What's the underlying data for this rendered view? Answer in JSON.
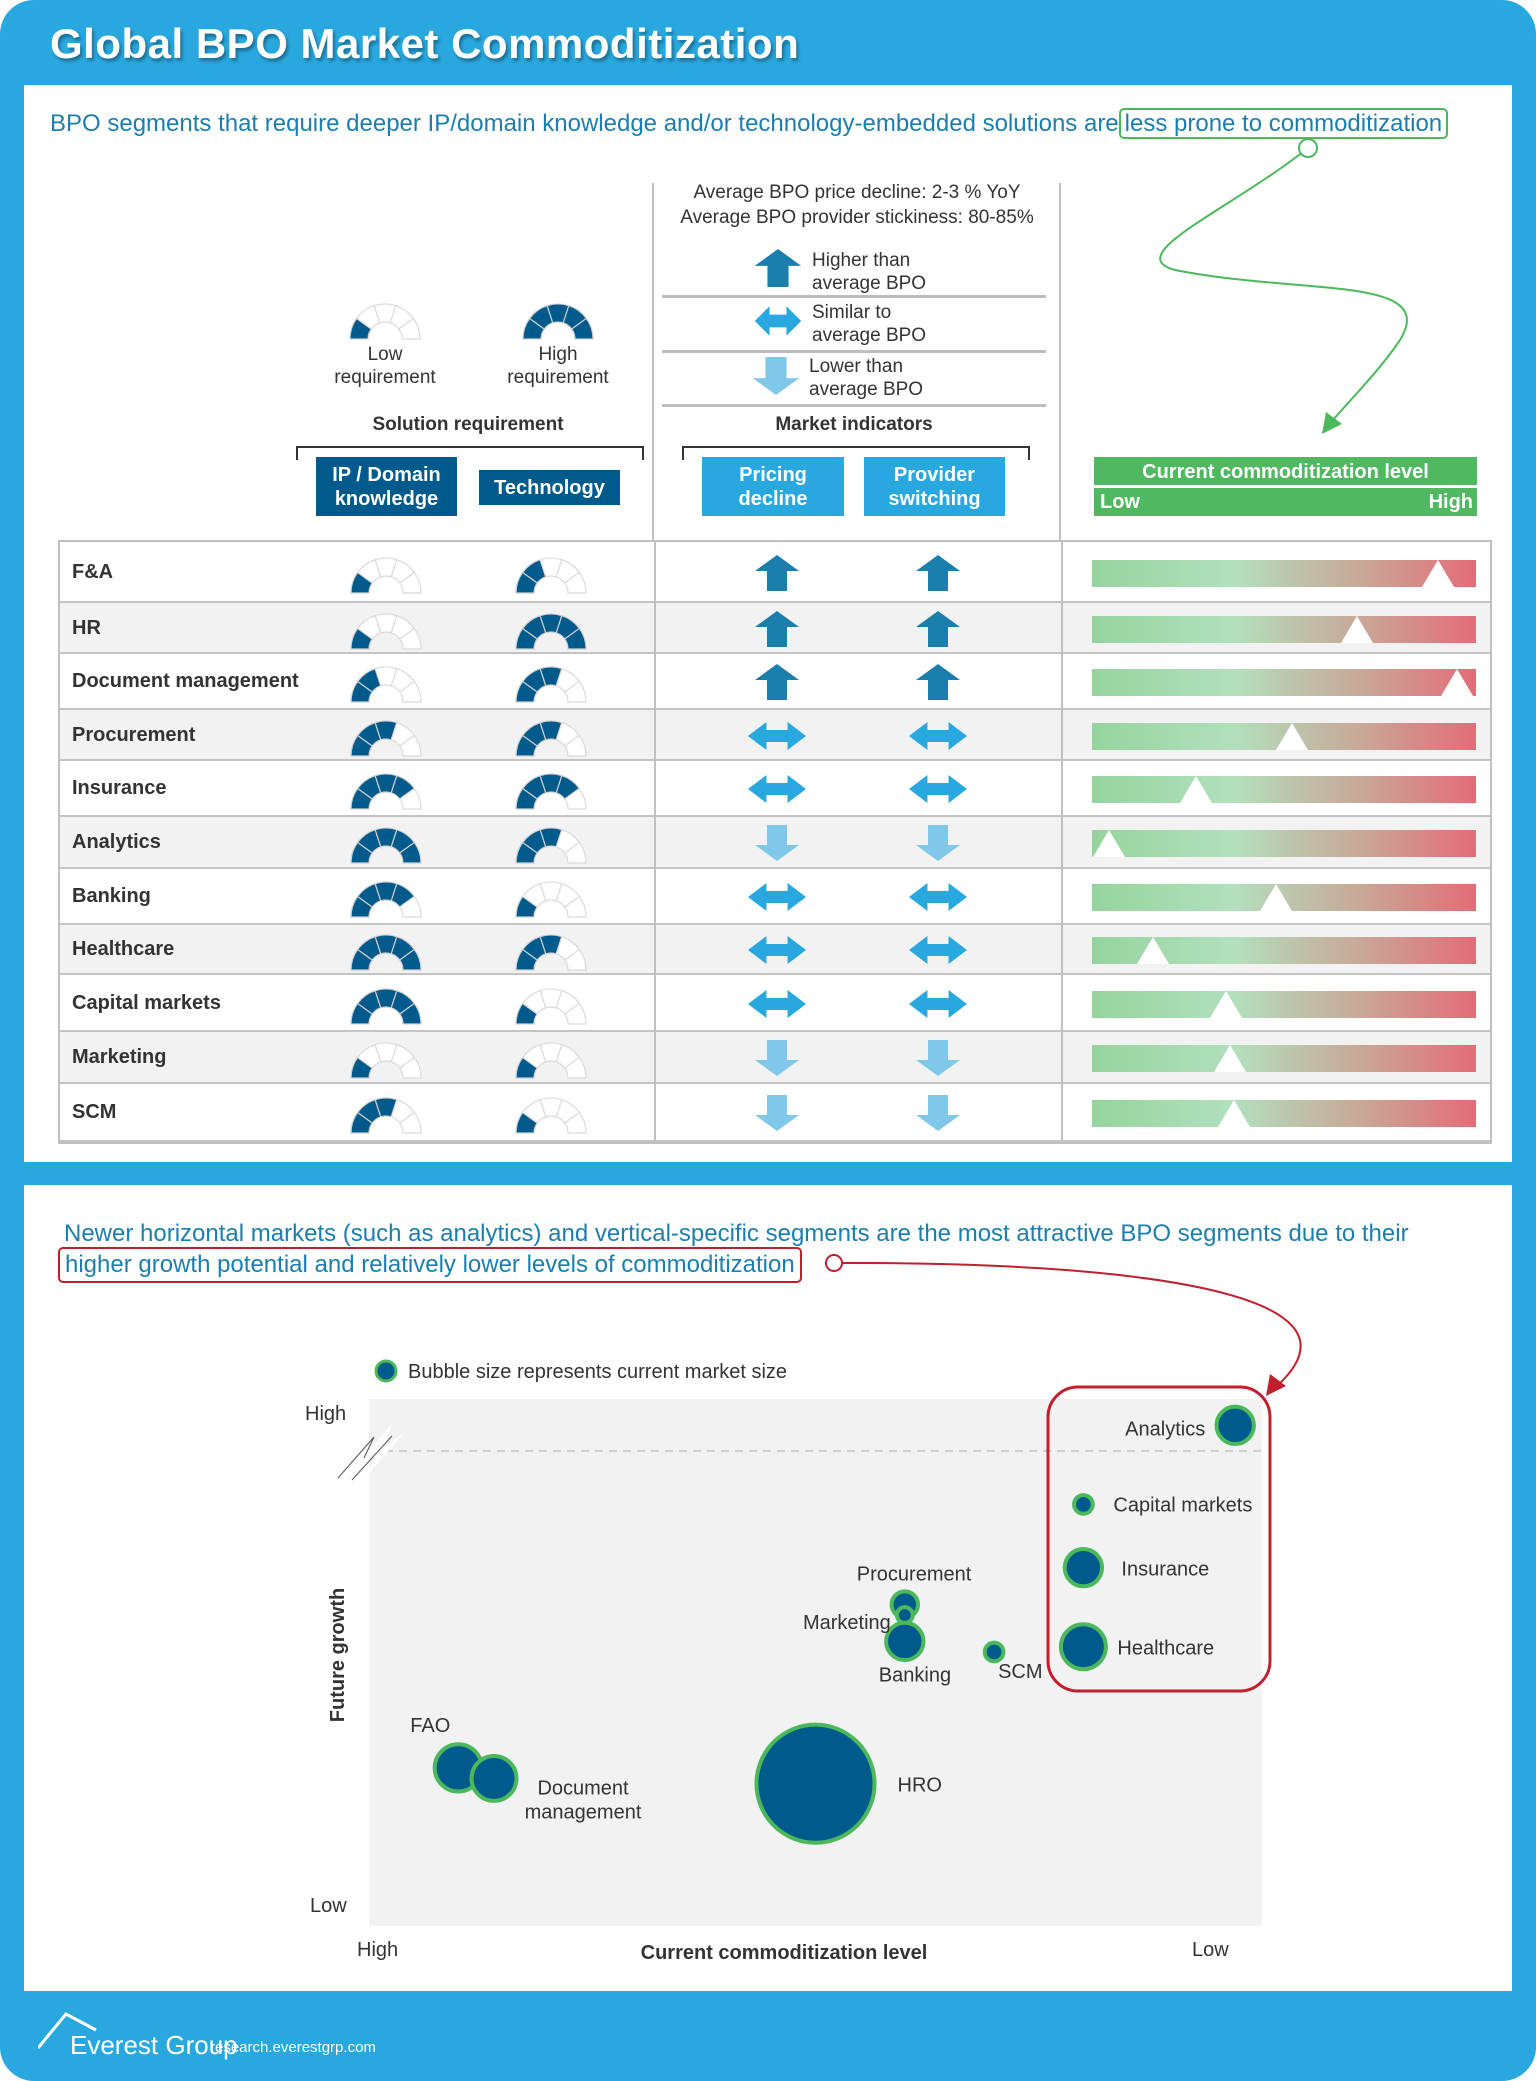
{
  "header": {
    "title": "Global BPO Market Commoditization"
  },
  "section1": {
    "headline": "BPO segments that require deeper IP/domain knowledge and/or technology-embedded solutions are",
    "headline_highlight": "less prone to commoditization"
  },
  "gauge_legend": {
    "low_label": "Low requirement",
    "low_level": 1,
    "high_label": "High requirement",
    "high_level": 5,
    "max_level": 5
  },
  "market_legend": {
    "avg_price_decline": "Average BPO price decline: 2-3 % YoY",
    "avg_stickiness": "Average BPO provider stickiness: 80-85%",
    "items": [
      {
        "icon": "arrow-up-icon",
        "label": "Higher than average BPO"
      },
      {
        "icon": "arrow-left-right-icon",
        "label": "Similar to average BPO"
      },
      {
        "icon": "arrow-down-icon",
        "label": "Lower than average BPO"
      }
    ]
  },
  "groups": {
    "solution_requirement": "Solution requirement",
    "market_indicators": "Market indicators",
    "commoditization_title": "Current commoditization level",
    "low": "Low",
    "high": "High"
  },
  "columns": {
    "ip_domain": "IP / Domain knowledge",
    "technology": "Technology",
    "pricing_decline": "Pricing decline",
    "provider_switching": "Provider switching"
  },
  "colors": {
    "brand_blue": "#29a8e0",
    "dark_blue": "#005a8c",
    "arrow_higher": "#1a7fac",
    "arrow_similar": "#29a8e0",
    "arrow_lower": "#80c8ea",
    "green": "#50b860",
    "red": "#c0202e"
  },
  "table": {
    "rows": [
      {
        "segment": "F&A",
        "ip_domain": 1,
        "technology": 2,
        "pricing_decline": "higher",
        "provider_switching": "higher",
        "commoditization": 0.9
      },
      {
        "segment": "HR",
        "ip_domain": 1,
        "technology": 5,
        "pricing_decline": "higher",
        "provider_switching": "higher",
        "commoditization": 0.69
      },
      {
        "segment": "Document management",
        "ip_domain": 2,
        "technology": 3,
        "pricing_decline": "higher",
        "provider_switching": "higher",
        "commoditization": 0.95
      },
      {
        "segment": "Procurement",
        "ip_domain": 3,
        "technology": 3,
        "pricing_decline": "similar",
        "provider_switching": "similar",
        "commoditization": 0.52
      },
      {
        "segment": "Insurance",
        "ip_domain": 4,
        "technology": 4,
        "pricing_decline": "similar",
        "provider_switching": "similar",
        "commoditization": 0.27
      },
      {
        "segment": "Analytics",
        "ip_domain": 5,
        "technology": 3,
        "pricing_decline": "lower",
        "provider_switching": "lower",
        "commoditization": 0.045
      },
      {
        "segment": "Banking",
        "ip_domain": 4,
        "technology": 1,
        "pricing_decline": "similar",
        "provider_switching": "similar",
        "commoditization": 0.48
      },
      {
        "segment": "Healthcare",
        "ip_domain": 5,
        "technology": 3,
        "pricing_decline": "similar",
        "provider_switching": "similar",
        "commoditization": 0.16
      },
      {
        "segment": "Capital markets",
        "ip_domain": 5,
        "technology": 1,
        "pricing_decline": "similar",
        "provider_switching": "similar",
        "commoditization": 0.35
      },
      {
        "segment": "Marketing",
        "ip_domain": 1,
        "technology": 1,
        "pricing_decline": "lower",
        "provider_switching": "lower",
        "commoditization": 0.36
      },
      {
        "segment": "SCM",
        "ip_domain": 3,
        "technology": 1,
        "pricing_decline": "lower",
        "provider_switching": "lower",
        "commoditization": 0.37
      }
    ]
  },
  "section2": {
    "headline_line1": "Newer horizontal markets (such as analytics) and vertical-specific segments are the most attractive BPO segments due to their",
    "headline_highlight": "higher growth potential and relatively lower levels of commoditization"
  },
  "chart_data": {
    "type": "scatter",
    "subtype": "bubble",
    "legend": "Bubble size represents current market size",
    "xlabel": "Current commoditization level",
    "ylabel": "Future growth",
    "x_tick_labels": [
      "High",
      "Low"
    ],
    "y_tick_labels": [
      "Low",
      "High"
    ],
    "x_direction": "high-to-low (left to right)",
    "xlim": [
      0,
      100
    ],
    "ylim": [
      0,
      100
    ],
    "axis_break": "y",
    "grid": false,
    "points": [
      {
        "label": "Analytics",
        "commoditization": 3,
        "growth": 95,
        "size": 2.0,
        "highlighted": true
      },
      {
        "label": "Capital markets",
        "commoditization": 20,
        "growth": 80,
        "size": 0.5,
        "highlighted": true
      },
      {
        "label": "Insurance",
        "commoditization": 20,
        "growth": 68,
        "size": 2.0,
        "highlighted": true
      },
      {
        "label": "Healthcare",
        "commoditization": 20,
        "growth": 53,
        "size": 2.9,
        "highlighted": true
      },
      {
        "label": "Procurement",
        "commoditization": 40,
        "growth": 61,
        "size": 1.0,
        "highlighted": false
      },
      {
        "label": "Marketing",
        "commoditization": 40,
        "growth": 59,
        "size": 0.36,
        "highlighted": false
      },
      {
        "label": "Banking",
        "commoditization": 40,
        "growth": 54,
        "size": 2.0,
        "highlighted": false
      },
      {
        "label": "SCM",
        "commoditization": 30,
        "growth": 52,
        "size": 0.5,
        "highlighted": false
      },
      {
        "label": "FAO",
        "commoditization": 90,
        "growth": 30,
        "size": 3.2,
        "highlighted": false
      },
      {
        "label": "Document management",
        "commoditization": 86,
        "growth": 28,
        "size": 2.9,
        "highlighted": false
      },
      {
        "label": "HRO",
        "commoditization": 50,
        "growth": 27,
        "size": 20,
        "highlighted": false
      }
    ]
  },
  "footer": {
    "logo": "Everest Group",
    "url": "research.everestgrp.com"
  }
}
